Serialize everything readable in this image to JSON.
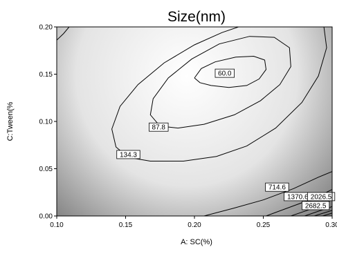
{
  "chart_data": {
    "type": "contour",
    "title": "Size(nm)",
    "xlabel": "A: SC(%)",
    "ylabel": "C:Tween(%",
    "xlim": [
      0.1,
      0.3
    ],
    "ylim": [
      0.0,
      0.2
    ],
    "xticks": [
      "0.10",
      "0.15",
      "0.20",
      "0.25",
      "0.30"
    ],
    "yticks": [
      "0.00",
      "0.05",
      "0.10",
      "0.15",
      "0.20"
    ],
    "x_tick_values": [
      0.1,
      0.15,
      0.2,
      0.25,
      0.3
    ],
    "y_tick_values": [
      0.0,
      0.05,
      0.1,
      0.15,
      0.2
    ],
    "color_scale": {
      "low": "#ffffff",
      "high": "#7a7a7a"
    },
    "contours": [
      {
        "label": "60.0",
        "label_at": [
          0.222,
          0.151
        ],
        "points": [
          [
            0.2,
            0.146
          ],
          [
            0.205,
            0.156
          ],
          [
            0.215,
            0.163
          ],
          [
            0.23,
            0.168
          ],
          [
            0.243,
            0.169
          ],
          [
            0.251,
            0.165
          ],
          [
            0.252,
            0.155
          ],
          [
            0.247,
            0.145
          ],
          [
            0.238,
            0.138
          ],
          [
            0.225,
            0.136
          ],
          [
            0.212,
            0.138
          ],
          [
            0.204,
            0.141
          ],
          [
            0.2,
            0.146
          ]
        ]
      },
      {
        "label": "87.8",
        "label_at": [
          0.174,
          0.094
        ],
        "points": [
          [
            0.175,
            0.095
          ],
          [
            0.168,
            0.107
          ],
          [
            0.17,
            0.124
          ],
          [
            0.181,
            0.146
          ],
          [
            0.198,
            0.166
          ],
          [
            0.218,
            0.182
          ],
          [
            0.24,
            0.19
          ],
          [
            0.258,
            0.189
          ],
          [
            0.269,
            0.178
          ],
          [
            0.27,
            0.158
          ],
          [
            0.262,
            0.139
          ],
          [
            0.248,
            0.122
          ],
          [
            0.229,
            0.107
          ],
          [
            0.207,
            0.097
          ],
          [
            0.188,
            0.093
          ],
          [
            0.175,
            0.095
          ]
        ]
      },
      {
        "label": "134.3",
        "label_at": [
          0.152,
          0.065
        ],
        "points": [
          [
            0.152,
            0.062
          ],
          [
            0.143,
            0.073
          ],
          [
            0.14,
            0.092
          ],
          [
            0.146,
            0.116
          ],
          [
            0.159,
            0.139
          ],
          [
            0.178,
            0.162
          ],
          [
            0.2,
            0.181
          ],
          [
            0.22,
            0.194
          ],
          [
            0.232,
            0.2
          ]
        ],
        "points2": [
          [
            0.294,
            0.2
          ],
          [
            0.296,
            0.178
          ],
          [
            0.29,
            0.148
          ],
          [
            0.278,
            0.12
          ],
          [
            0.259,
            0.093
          ],
          [
            0.238,
            0.074
          ],
          [
            0.216,
            0.063
          ],
          [
            0.192,
            0.058
          ],
          [
            0.168,
            0.058
          ],
          [
            0.152,
            0.062
          ]
        ]
      },
      {
        "label": "",
        "points": [
          [
            0.1,
            0.186
          ],
          [
            0.105,
            0.193
          ],
          [
            0.109,
            0.2
          ]
        ]
      },
      {
        "label": "714.6",
        "label_at": [
          0.26,
          0.0305
        ],
        "points": [
          [
            0.207,
            0.0
          ],
          [
            0.228,
            0.008
          ],
          [
            0.25,
            0.017
          ],
          [
            0.272,
            0.029
          ],
          [
            0.29,
            0.041
          ],
          [
            0.3,
            0.047
          ]
        ]
      },
      {
        "label": "1370.6",
        "label_at": [
          0.275,
          0.0205
        ],
        "points": [
          [
            0.252,
            0.0
          ],
          [
            0.265,
            0.007
          ],
          [
            0.28,
            0.015
          ],
          [
            0.293,
            0.023
          ],
          [
            0.3,
            0.028
          ]
        ]
      },
      {
        "label": "2026.5",
        "label_at": [
          0.292,
          0.0205
        ],
        "points": [
          [
            0.27,
            0.0
          ],
          [
            0.282,
            0.006
          ],
          [
            0.293,
            0.013
          ],
          [
            0.3,
            0.017
          ]
        ]
      },
      {
        "label": "2682.5",
        "label_at": [
          0.288,
          0.011
        ],
        "points": [
          [
            0.28,
            0.0
          ],
          [
            0.29,
            0.005
          ],
          [
            0.3,
            0.01
          ]
        ]
      },
      {
        "label": "",
        "points": [
          [
            0.287,
            0.0
          ],
          [
            0.3,
            0.006
          ]
        ]
      },
      {
        "label": "",
        "points": [
          [
            0.293,
            0.0
          ],
          [
            0.3,
            0.003
          ]
        ]
      }
    ]
  }
}
